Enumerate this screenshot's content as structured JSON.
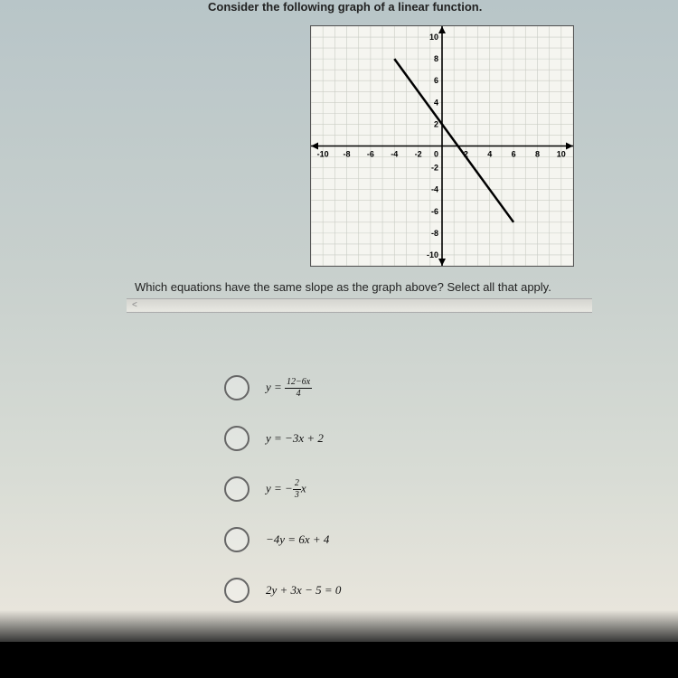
{
  "prompt1": "Consider the following graph of a linear function.",
  "prompt2": "Which equations have the same slope as the graph above? Select all that apply.",
  "graph": {
    "type": "line",
    "xlim": [
      -11,
      11
    ],
    "ylim": [
      -11,
      11
    ],
    "xticks": [
      -10,
      -8,
      -6,
      -4,
      -2,
      0,
      2,
      4,
      6,
      8,
      10
    ],
    "yticks": [
      -10,
      -8,
      -6,
      -4,
      -2,
      0,
      2,
      4,
      6,
      8,
      10
    ],
    "grid_color": "#c9ccc4",
    "axis_color": "#000000",
    "background_color": "#f5f5f0",
    "tick_fontsize": 9,
    "line": {
      "points": [
        [
          -4,
          8
        ],
        [
          6,
          -7
        ]
      ],
      "color": "#000000",
      "width": 2.5
    }
  },
  "options": [
    {
      "text_html": "y = (12−6x)/4",
      "frac_num": "12−6x",
      "frac_den": "4",
      "is_frac": true,
      "pre": "y = "
    },
    {
      "text_html": "y = −3x + 2",
      "is_frac": false
    },
    {
      "text_html": "y = −(2/3)x",
      "frac_num": "2",
      "frac_den": "3",
      "is_frac": true,
      "pre": "y = −",
      "post": "x"
    },
    {
      "text_html": "−4y = 6x + 4",
      "is_frac": false
    },
    {
      "text_html": "2y + 3x − 5 = 0",
      "is_frac": false
    }
  ],
  "radio_border": "#666666",
  "text_color": "#111111"
}
